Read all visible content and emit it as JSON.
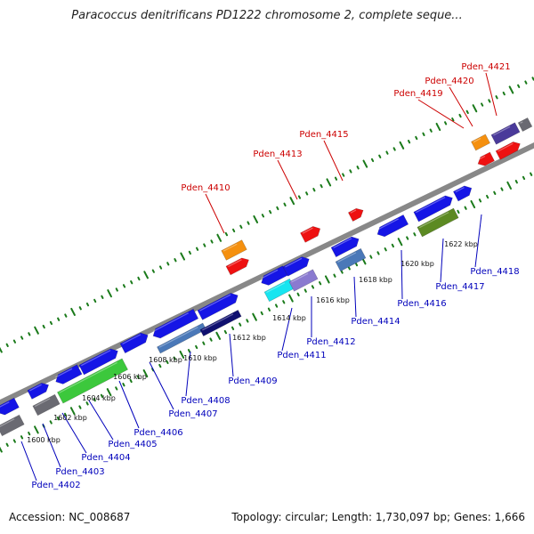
{
  "header": {
    "title": "Paracoccus denitrificans PD1222 chromosome 2, complete seque..."
  },
  "footer": {
    "accession": "Accession: NC_008687",
    "topology": "Topology: circular; Length: 1,730,097 bp; Genes: 1,666"
  },
  "colors": {
    "backbone": "#888888",
    "tick": "#1a7a1a",
    "upper_label": "#cc0000",
    "lower_label": "#0000bb"
  },
  "kbp_ticks": [
    "1600 kbp",
    "1602 kbp",
    "1604 kbp",
    "1606 kbp",
    "1608 kbp",
    "1610 kbp",
    "1612 kbp",
    "1614 kbp",
    "1616 kbp",
    "1618 kbp",
    "1620 kbp",
    "1622 kbp"
  ],
  "upper_labels": [
    "Pden_4410",
    "Pden_4413",
    "Pden_4415",
    "Pden_4419",
    "Pden_4420",
    "Pden_4421"
  ],
  "lower_labels": [
    "Pden_4402",
    "Pden_4403",
    "Pden_4404",
    "Pden_4405",
    "Pden_4406",
    "Pden_4407",
    "Pden_4408",
    "Pden_4409",
    "Pden_4411",
    "Pden_4412",
    "Pden_4414",
    "Pden_4416",
    "Pden_4417",
    "Pden_4418"
  ]
}
